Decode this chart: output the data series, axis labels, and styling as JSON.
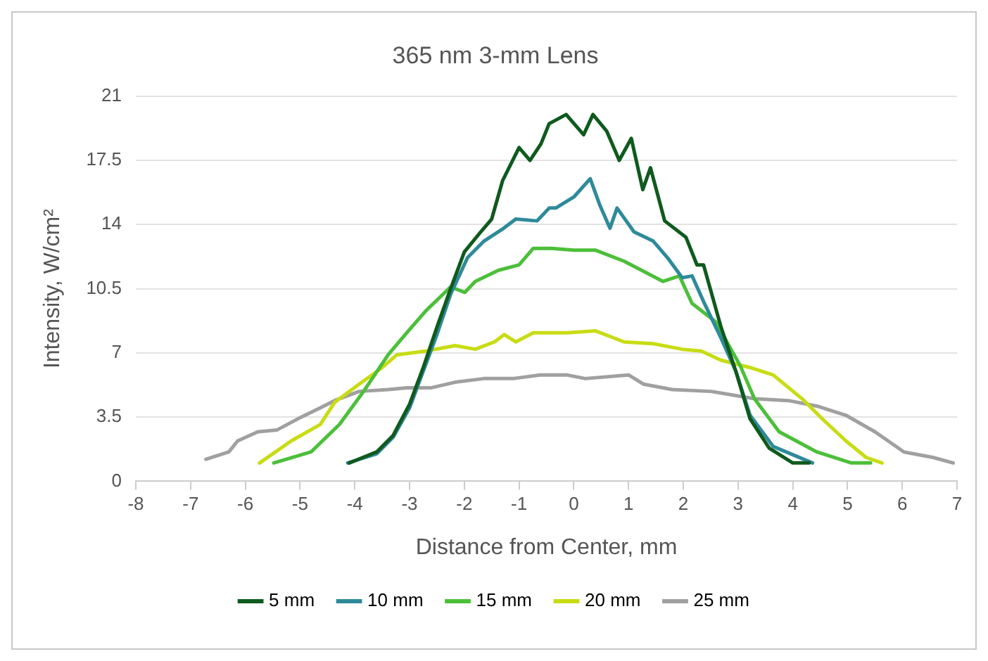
{
  "chart_data": {
    "type": "line",
    "title": "365 nm 3-mm Lens",
    "xlabel": "Distance from Center, mm",
    "ylabel": "Intensity, W/cm²",
    "xlim": [
      -8,
      7
    ],
    "xticks": [
      -8,
      -7,
      -6,
      -5,
      -4,
      -3,
      -2,
      -1,
      0,
      1,
      2,
      3,
      4,
      5,
      6,
      7
    ],
    "ylim": [
      0,
      21
    ],
    "yticks": [
      0,
      3.5,
      7,
      10.5,
      14,
      17.5,
      21
    ],
    "grid": "y",
    "legend": "bottom",
    "marker": "none",
    "line_style": "solid",
    "series": [
      {
        "name": "5 mm",
        "color": "#0f5a1e",
        "x": [
          -4.1,
          -3.6,
          -3.3,
          -3,
          -2.75,
          -2.5,
          -2.25,
          -2,
          -1.7,
          -1.5,
          -1.3,
          -1.0,
          -0.8,
          -0.6,
          -0.45,
          -0.14,
          0.18,
          0.35,
          0.6,
          0.83,
          1.05,
          1.26,
          1.4,
          1.66,
          2.05,
          2.25,
          2.37,
          2.69,
          2.96,
          3.22,
          3.57,
          4.0,
          4.3
        ],
        "values": [
          1.0,
          1.6,
          2.5,
          4.2,
          6.2,
          8.4,
          10.5,
          12.5,
          13.6,
          14.3,
          16.4,
          18.2,
          17.5,
          18.4,
          19.5,
          20.0,
          18.9,
          20.0,
          19.1,
          17.5,
          18.7,
          15.9,
          17.1,
          14.2,
          13.3,
          11.8,
          11.8,
          8.4,
          6.0,
          3.4,
          1.8,
          1.0,
          1.0
        ]
      },
      {
        "name": "10 mm",
        "color": "#2e8a9a",
        "x": [
          -4.13,
          -3.6,
          -3.3,
          -3,
          -2.75,
          -2.5,
          -2.25,
          -1.94,
          -1.64,
          -1.28,
          -1.06,
          -0.67,
          -0.45,
          -0.33,
          0,
          0.3,
          0.47,
          0.66,
          0.79,
          1.1,
          1.45,
          1.71,
          1.98,
          2.16,
          2.37,
          2.69,
          2.96,
          3.22,
          3.64,
          4.36
        ],
        "values": [
          1.0,
          1.5,
          2.4,
          4.0,
          6.0,
          8.0,
          10.2,
          12.2,
          13.1,
          13.8,
          14.3,
          14.2,
          14.9,
          14.9,
          15.5,
          16.5,
          15.1,
          13.8,
          14.9,
          13.6,
          13.1,
          12.2,
          11.1,
          11.2,
          9.8,
          7.8,
          6.0,
          3.6,
          1.9,
          1.0
        ]
      },
      {
        "name": "15 mm",
        "color": "#4cbf3a",
        "x": [
          -5.48,
          -4.8,
          -4.28,
          -3.84,
          -3.39,
          -3.05,
          -2.7,
          -2.25,
          -1.99,
          -1.8,
          -1.38,
          -1.0,
          -0.74,
          -0.4,
          0,
          0.4,
          0.92,
          1.63,
          1.93,
          2.16,
          2.59,
          3.04,
          3.3,
          3.75,
          4.44,
          5.07,
          5.42
        ],
        "values": [
          1.0,
          1.6,
          3.1,
          4.9,
          6.9,
          8.1,
          9.3,
          10.6,
          10.3,
          10.9,
          11.5,
          11.8,
          12.7,
          12.7,
          12.6,
          12.6,
          12.0,
          10.9,
          11.2,
          9.7,
          8.7,
          6.3,
          4.5,
          2.7,
          1.6,
          1.0,
          1.0
        ]
      },
      {
        "name": "20 mm",
        "color": "#c8dc14",
        "x": [
          -5.74,
          -5.16,
          -4.63,
          -4.37,
          -3.92,
          -3.5,
          -3.23,
          -2.7,
          -2.17,
          -1.8,
          -1.45,
          -1.27,
          -1.06,
          -0.74,
          -0.13,
          0.4,
          0.92,
          1.45,
          1.98,
          2.33,
          2.69,
          3.22,
          3.64,
          4.17,
          4.54,
          4.97,
          5.34,
          5.63
        ],
        "values": [
          1.0,
          2.2,
          3.1,
          4.3,
          5.3,
          6.2,
          6.9,
          7.1,
          7.4,
          7.2,
          7.6,
          8.0,
          7.6,
          8.1,
          8.1,
          8.2,
          7.6,
          7.5,
          7.2,
          7.1,
          6.6,
          6.2,
          5.8,
          4.5,
          3.4,
          2.2,
          1.3,
          1.0
        ]
      },
      {
        "name": "25 mm",
        "color": "#a0a0a0",
        "x": [
          -6.72,
          -6.3,
          -6.14,
          -5.77,
          -5.42,
          -4.98,
          -4.63,
          -4.37,
          -3.92,
          -3.39,
          -3.05,
          -2.6,
          -2.17,
          -1.64,
          -1.11,
          -0.61,
          -0.13,
          0.21,
          1.0,
          1.27,
          1.8,
          2.51,
          3.3,
          3.92,
          4.44,
          4.97,
          5.5,
          6.03,
          6.56,
          6.93
        ],
        "values": [
          1.2,
          1.6,
          2.2,
          2.7,
          2.8,
          3.5,
          4.0,
          4.4,
          4.9,
          5.0,
          5.1,
          5.1,
          5.4,
          5.6,
          5.6,
          5.8,
          5.8,
          5.6,
          5.8,
          5.3,
          5.0,
          4.9,
          4.5,
          4.4,
          4.1,
          3.6,
          2.7,
          1.6,
          1.3,
          1.0
        ]
      }
    ]
  }
}
